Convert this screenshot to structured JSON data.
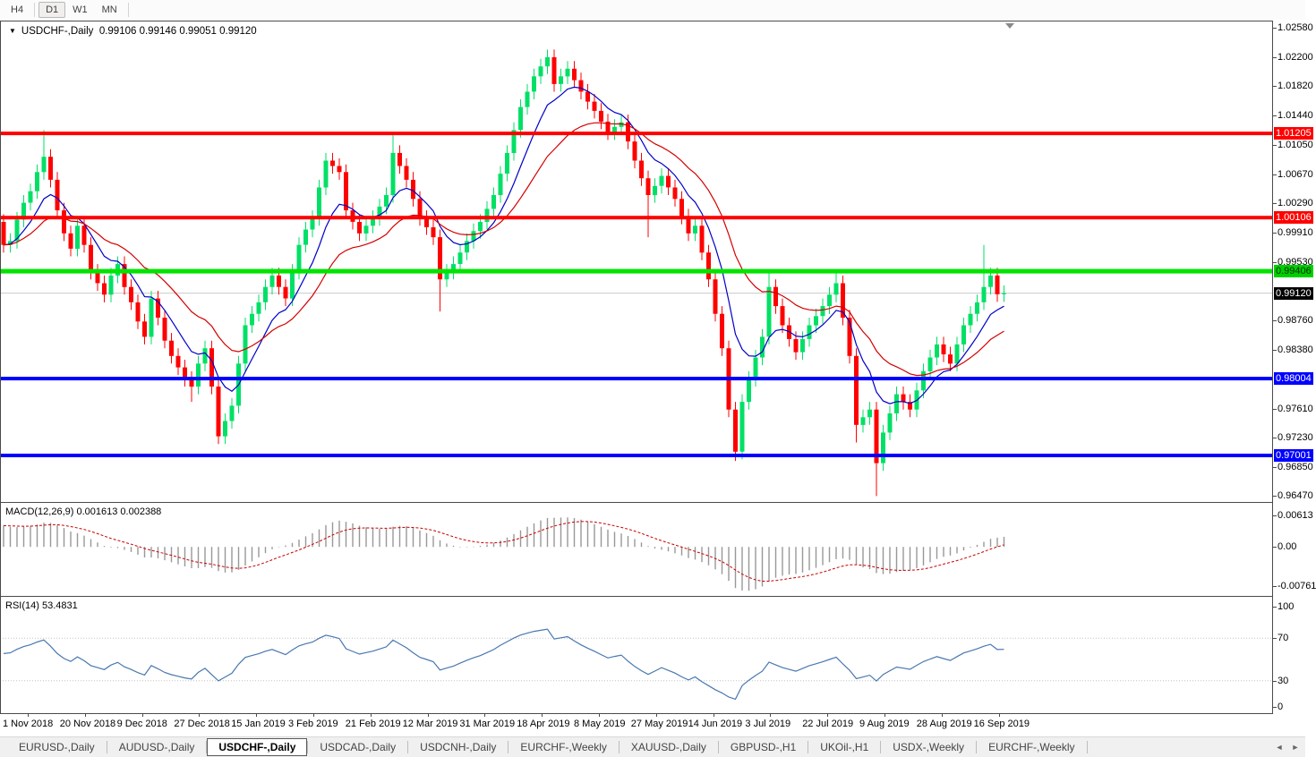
{
  "toolbar": {
    "timeframes": [
      {
        "label": "H4",
        "active": false
      },
      {
        "label": "D1",
        "active": true
      },
      {
        "label": "W1",
        "active": false
      },
      {
        "label": "MN",
        "active": false
      }
    ]
  },
  "chart": {
    "title": {
      "collapse_icon": "▼",
      "symbol": "USDCHF-,Daily",
      "quotes": "0.99106 0.99146 0.99051 0.99120"
    },
    "price_range": {
      "top": 1.02655,
      "bottom": 0.96405
    },
    "current_price_line": 0.9912,
    "colors": {
      "candle_up": "#00E066",
      "candle_down": "#FF0000",
      "ma_fast": "#0000C8",
      "ma_slow": "#D40000",
      "hline_red": "#FF0000",
      "hline_green": "#00E400",
      "hline_blue": "#0000FF",
      "current_line": "#C9C9C9",
      "macd_hist": "#989898",
      "macd_signal": "#C80000",
      "rsi_line": "#4878B0"
    },
    "hlines": [
      {
        "price": 1.01205,
        "color": "#FF0000",
        "width": 4
      },
      {
        "price": 1.00106,
        "color": "#FF0000",
        "width": 4
      },
      {
        "price": 0.99406,
        "color": "#00E400",
        "width": 5
      },
      {
        "price": 0.98004,
        "color": "#0000FF",
        "width": 4
      },
      {
        "price": 0.97001,
        "color": "#0000FF",
        "width": 4
      }
    ],
    "y_axis": {
      "ticks": [
        "1.02580",
        "1.02200",
        "1.01820",
        "1.01440",
        "1.01050",
        "1.00670",
        "1.00290",
        "0.99910",
        "0.99530",
        "0.98760",
        "0.98380",
        "0.97610",
        "0.97230",
        "0.96850",
        "0.96470"
      ],
      "price_labels": [
        {
          "text": "1.01205",
          "price": 1.01205,
          "bg": "#FF0000",
          "fg": "#FFFFFF"
        },
        {
          "text": "1.00106",
          "price": 1.00106,
          "bg": "#FF0000",
          "fg": "#FFFFFF"
        },
        {
          "text": "0.99406",
          "price": 0.99406,
          "bg": "#00D000",
          "fg": "#003000"
        },
        {
          "text": "0.99120",
          "price": 0.9912,
          "bg": "#000000",
          "fg": "#FFFFFF"
        },
        {
          "text": "0.98004",
          "price": 0.98004,
          "bg": "#0000FF",
          "fg": "#FFFFFF"
        },
        {
          "text": "0.97001",
          "price": 0.97001,
          "bg": "#0000FF",
          "fg": "#FFFFFF"
        }
      ]
    },
    "x_axis": {
      "labels": [
        "1 Nov 2018",
        "20 Nov 2018",
        "9 Dec 2018",
        "27 Dec 2018",
        "15 Jan 2019",
        "3 Feb 2019",
        "21 Feb 2019",
        "12 Mar 2019",
        "31 Mar 2019",
        "18 Apr 2019",
        "8 May 2019",
        "27 May 2019",
        "14 Jun 2019",
        "3 Jul 2019",
        "22 Jul 2019",
        "9 Aug 2019",
        "28 Aug 2019",
        "16 Sep 2019"
      ]
    },
    "candles": {
      "default_wick": 0.001,
      "closes": [
        0.9975,
        0.998,
        1.0008,
        1.003,
        1.0045,
        1.007,
        1.009,
        1.006,
        1.002,
        0.999,
        0.997,
        1.0,
        0.9975,
        0.994,
        0.9925,
        0.991,
        0.9935,
        0.995,
        0.992,
        0.99,
        0.9875,
        0.9855,
        0.9905,
        0.988,
        0.985,
        0.983,
        0.9815,
        0.98,
        0.979,
        0.982,
        0.984,
        0.979,
        0.9725,
        0.9745,
        0.9765,
        0.982,
        0.987,
        0.9885,
        0.99,
        0.992,
        0.9935,
        0.992,
        0.9905,
        0.994,
        0.9975,
        0.9995,
        1.001,
        1.005,
        1.0085,
        1.0078,
        1.007,
        1.002,
        1.0005,
        0.999,
        1.0,
        1.001,
        1.0025,
        1.004,
        1.0095,
        1.0078,
        1.006,
        1.0035,
        1.001,
        0.9998,
        0.9985,
        0.993,
        0.994,
        0.995,
        0.9965,
        0.998,
        0.9993,
        1.0005,
        1.0022,
        1.004,
        1.0068,
        1.0095,
        1.0125,
        1.0155,
        1.0175,
        1.0195,
        1.0208,
        1.022,
        1.0185,
        1.0195,
        1.0205,
        1.019,
        1.0175,
        1.0162,
        1.015,
        1.0136,
        1.0122,
        1.0129,
        1.0135,
        1.011,
        1.0085,
        1.0062,
        1.004,
        1.0052,
        1.0065,
        1.005,
        1.0035,
        1.0012,
        0.999,
        1.0,
        0.9965,
        0.993,
        0.9885,
        0.984,
        0.976,
        0.9705,
        0.977,
        0.98,
        0.9828,
        0.9855,
        0.992,
        0.9895,
        0.987,
        0.9852,
        0.9835,
        0.9852,
        0.987,
        0.9882,
        0.9895,
        0.991,
        0.9925,
        0.988,
        0.983,
        0.974,
        0.975,
        0.976,
        0.969,
        0.973,
        0.9755,
        0.978,
        0.977,
        0.976,
        0.9785,
        0.981,
        0.9828,
        0.9845,
        0.9832,
        0.982,
        0.9845,
        0.987,
        0.9885,
        0.99,
        0.992,
        0.9935,
        0.99106,
        0.9912
      ],
      "hi_extra": {
        "6": 0.0025,
        "58": 0.0017,
        "114": 0.0008,
        "124": 0.0003,
        "146": 0.0045
      },
      "lo_extra": {
        "28": 0.001,
        "65": 0.0032,
        "96": 0.0045,
        "109": 0.0002,
        "127": 0.0013,
        "130": 0.0033
      }
    }
  },
  "macd": {
    "name": "MACD(12,26,9)",
    "values": "0.001613 0.002388",
    "range": {
      "top": 0.0086,
      "bottom": -0.0094
    },
    "scale": [
      {
        "text": "0.00613",
        "value": 0.00613
      },
      {
        "text": "0.00",
        "value": 0.0
      },
      {
        "text": "-0.00761",
        "value": -0.00761
      }
    ]
  },
  "rsi": {
    "name": "RSI(14)",
    "value": "53.4831",
    "levels": [
      70,
      30
    ],
    "scale": [
      {
        "text": "100",
        "value": 100
      },
      {
        "text": "70",
        "value": 70
      },
      {
        "text": "30",
        "value": 30
      },
      {
        "text": "0",
        "value": 0
      }
    ]
  },
  "tabbar": {
    "tabs": [
      {
        "label": "EURUSD-,Daily",
        "active": false
      },
      {
        "label": "AUDUSD-,Daily",
        "active": false
      },
      {
        "label": "USDCHF-,Daily",
        "active": true
      },
      {
        "label": "USDCAD-,Daily",
        "active": false
      },
      {
        "label": "USDCNH-,Daily",
        "active": false
      },
      {
        "label": "EURCHF-,Weekly",
        "active": false
      },
      {
        "label": "XAUUSD-,Daily",
        "active": false
      },
      {
        "label": "GBPUSD-,H1",
        "active": false
      },
      {
        "label": "UKOil-,H1",
        "active": false
      },
      {
        "label": "USDX-,Weekly",
        "active": false
      },
      {
        "label": "EURCHF-,Weekly",
        "active": false
      }
    ],
    "scroll_left_icon": "◄",
    "scroll_right_icon": "►"
  }
}
